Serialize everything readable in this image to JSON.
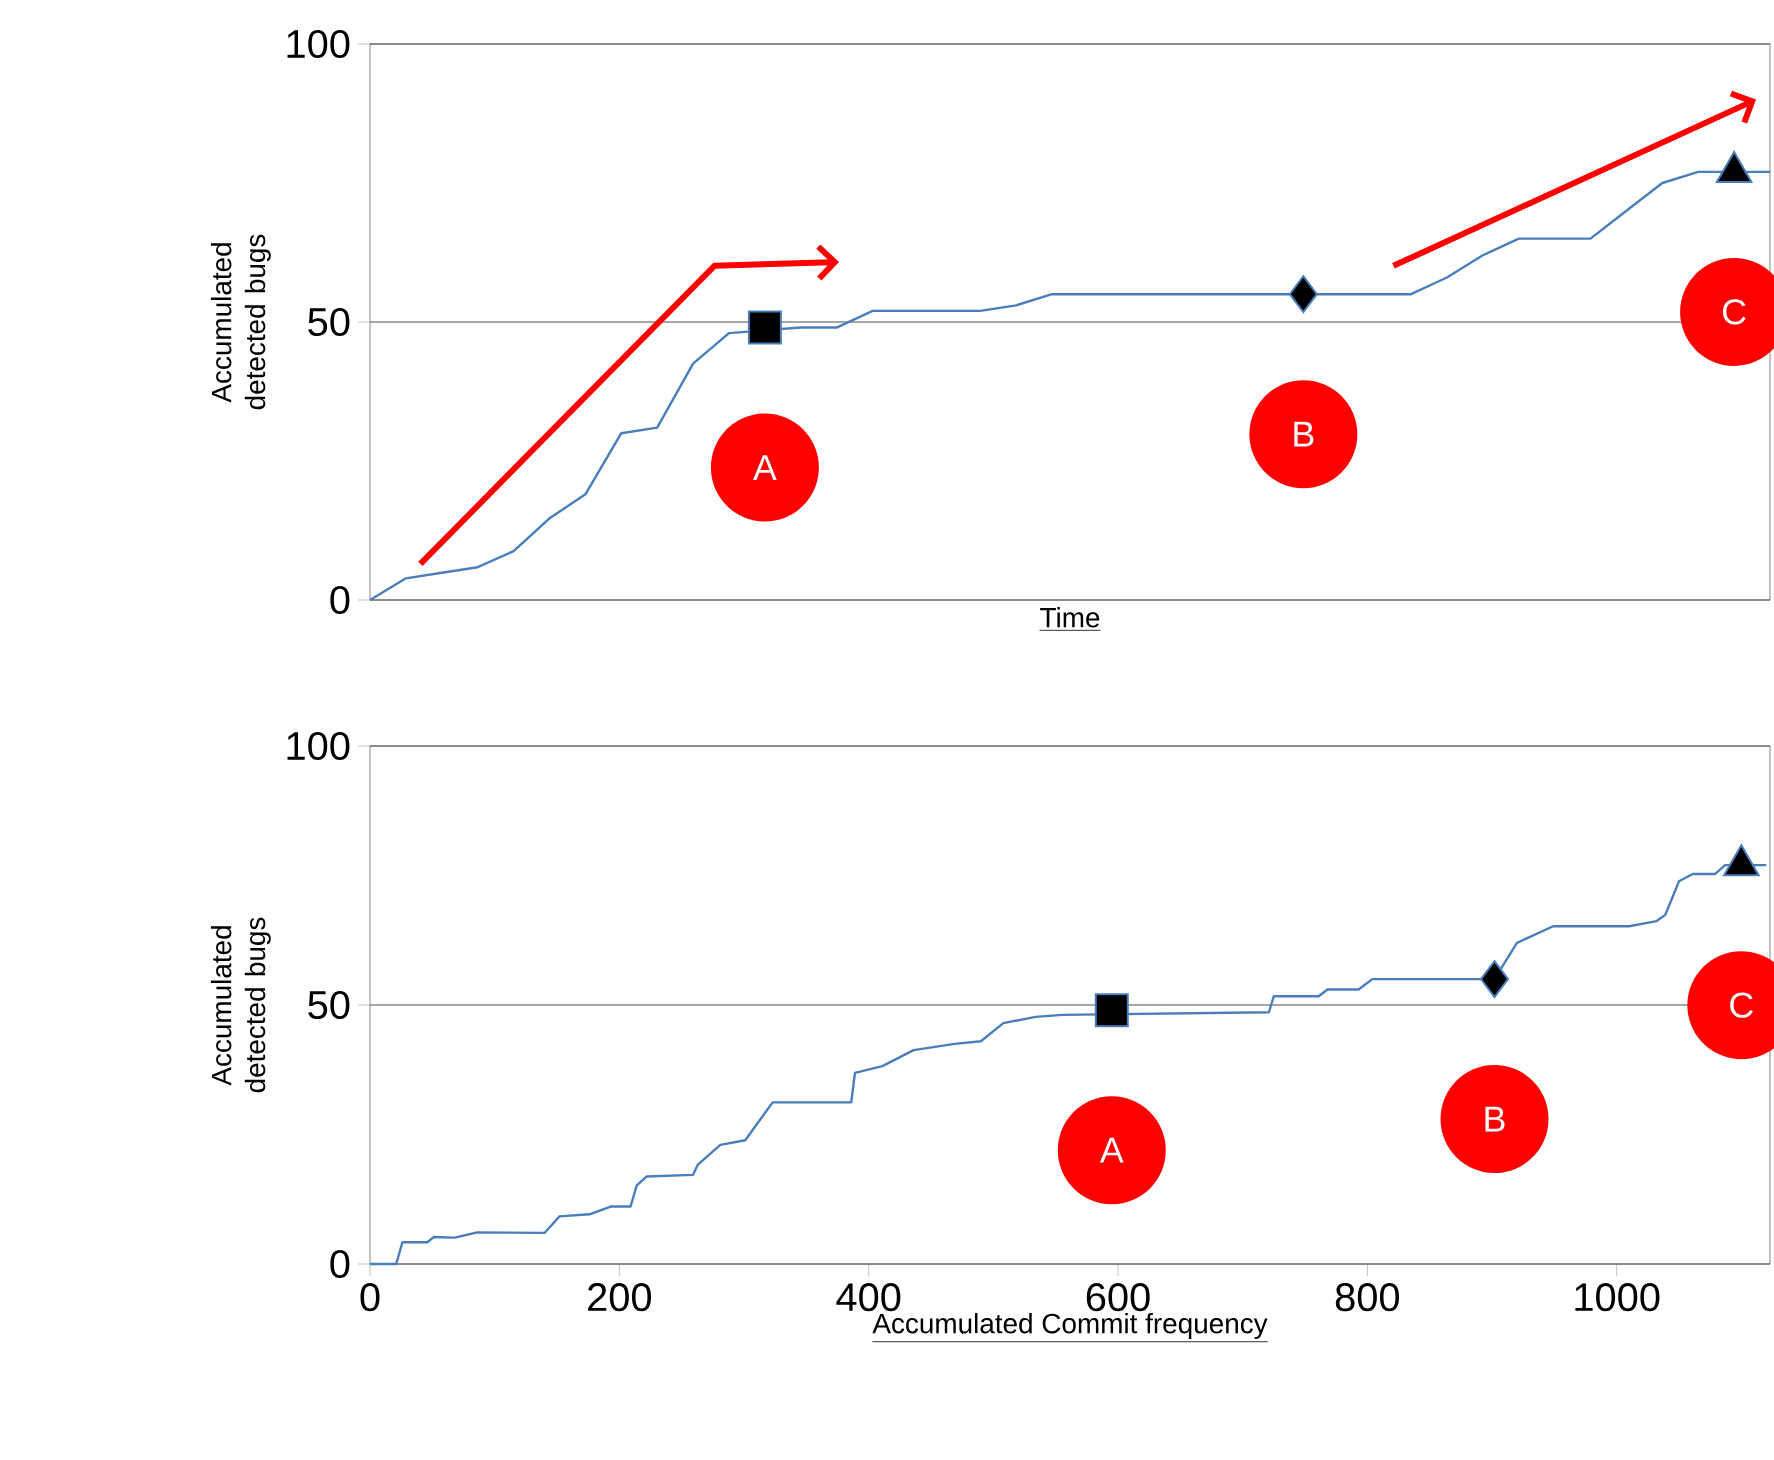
{
  "chart_data": [
    {
      "type": "line",
      "xlabel": "Time",
      "ylabel": "Accumulated detected bugs",
      "categories": [
        null,
        null,
        null,
        null,
        null,
        null,
        null,
        null,
        null,
        null,
        null,
        null,
        null,
        null,
        null,
        null,
        null,
        null,
        null,
        null,
        null,
        null,
        null,
        null,
        null,
        null,
        null,
        null,
        null,
        null,
        null,
        null,
        null,
        null,
        null,
        null,
        null,
        null,
        null,
        null
      ],
      "series": [
        {
          "color": "#4a7ebb",
          "values": [
            0,
            3.9,
            4.9,
            5.9,
            8.8,
            14.7,
            19,
            30,
            31,
            42.5,
            48,
            null,
            49,
            49,
            52,
            52,
            52,
            52,
            53,
            55,
            55,
            55,
            55,
            55,
            55,
            55,
            55,
            55,
            55,
            55,
            58,
            62,
            65,
            65,
            65,
            70,
            75,
            77,
            77,
            77
          ]
        },
        {
          "type": "scatter",
          "marker": "square",
          "color": "#000000",
          "values": [
            null,
            null,
            null,
            null,
            null,
            null,
            null,
            null,
            null,
            null,
            null,
            49,
            null,
            null,
            null,
            null,
            null,
            null,
            null,
            null,
            null,
            null,
            null,
            null,
            null,
            null,
            null,
            null,
            null,
            null,
            null,
            null,
            null,
            null,
            null,
            null,
            null,
            null,
            null,
            null
          ]
        },
        {
          "type": "scatter",
          "marker": "diamond",
          "color": "#000000",
          "values": [
            null,
            null,
            null,
            null,
            null,
            null,
            null,
            null,
            null,
            null,
            null,
            null,
            null,
            null,
            null,
            null,
            null,
            null,
            null,
            null,
            null,
            null,
            null,
            null,
            null,
            null,
            55,
            null,
            null,
            null,
            null,
            null,
            null,
            null,
            null,
            null,
            null,
            null,
            null,
            null
          ]
        },
        {
          "type": "scatter",
          "marker": "triangle",
          "color": "#000000",
          "values": [
            null,
            null,
            null,
            null,
            null,
            null,
            null,
            null,
            null,
            null,
            null,
            null,
            null,
            null,
            null,
            null,
            null,
            null,
            null,
            null,
            null,
            null,
            null,
            null,
            null,
            null,
            null,
            null,
            null,
            null,
            null,
            null,
            null,
            null,
            null,
            null,
            null,
            null,
            77,
            null
          ]
        }
      ],
      "annotations": [
        "A",
        "B",
        "C"
      ],
      "ylim": [
        0,
        100
      ],
      "yticks": [
        0,
        50,
        100
      ],
      "grid": "y",
      "tick_labels": "y"
    },
    {
      "type": "line",
      "xlabel": "Accumulated Commit frequency",
      "ylabel": "Accumulated detected bugs",
      "series": [
        {
          "color": "#4a7ebb",
          "x": [
            0,
            21,
            26,
            46,
            51,
            68,
            86,
            140,
            152,
            176,
            193,
            209,
            214,
            222,
            259,
            263,
            281,
            301,
            313,
            323,
            386,
            389,
            411,
            436,
            469,
            490,
            508,
            534,
            555,
            595,
            721,
            725,
            761,
            768,
            793,
            804,
            880,
            902,
            920,
            949,
            1010,
            1032,
            1039,
            1050,
            1061,
            1079,
            1087,
            1120
          ],
          "values": [
            0,
            0,
            4.2,
            4.2,
            5.2,
            5.1,
            6.1,
            6,
            9.2,
            9.6,
            11.1,
            11.1,
            15.2,
            16.9,
            17.2,
            19.2,
            23,
            23.9,
            27.9,
            31.2,
            31.2,
            36.9,
            38.2,
            41.3,
            42.5,
            43,
            46.5,
            47.7,
            48.1,
            null,
            48.6,
            51.7,
            51.7,
            53,
            53,
            55,
            55,
            55,
            62,
            65.2,
            65.2,
            66.2,
            67.4,
            73.9,
            75.3,
            75.3,
            77,
            77
          ]
        },
        {
          "type": "scatter",
          "marker": "square",
          "color": "#000000",
          "x": [
            595
          ],
          "values": [
            49
          ]
        },
        {
          "type": "scatter",
          "marker": "diamond",
          "color": "#000000",
          "x": [
            902
          ],
          "values": [
            55
          ]
        },
        {
          "type": "scatter",
          "marker": "triangle",
          "color": "#000000",
          "x": [
            1100
          ],
          "values": [
            77
          ]
        }
      ],
      "annotations": [
        "A",
        "B",
        "C"
      ],
      "xlim": [
        0,
        1123
      ],
      "xticks": [
        0,
        200,
        400,
        600,
        800,
        1000
      ],
      "ylim": [
        0,
        100
      ],
      "yticks": [
        0,
        50,
        100
      ],
      "grid": "y"
    }
  ]
}
